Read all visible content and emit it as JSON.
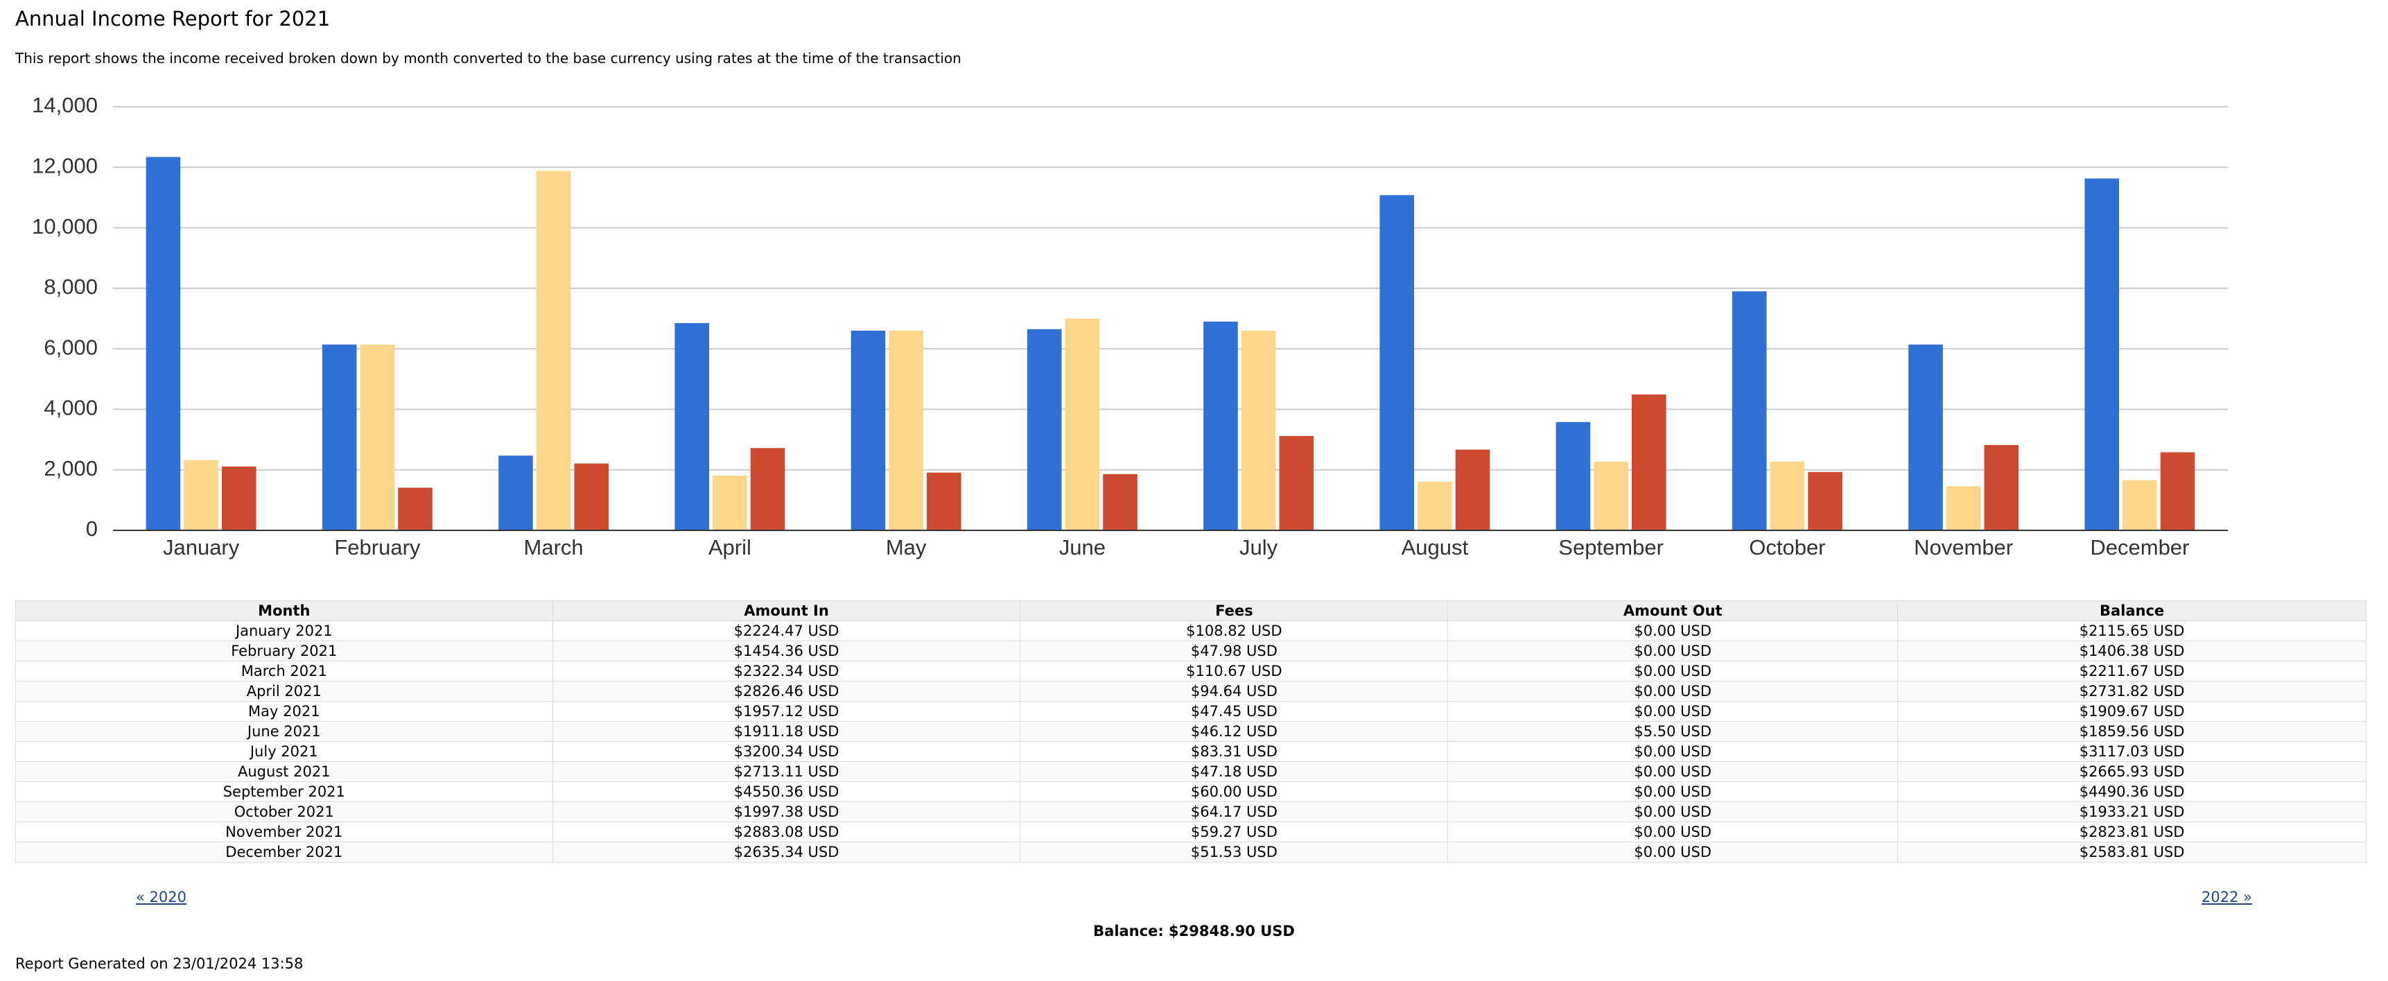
{
  "header": {
    "title": "Annual Income Report for 2021",
    "subtitle": "This report shows the income received broken down by month converted to the base currency using rates at the time of the transaction"
  },
  "chart_data": {
    "type": "bar",
    "categories": [
      "January",
      "February",
      "March",
      "April",
      "May",
      "June",
      "July",
      "August",
      "September",
      "October",
      "November",
      "December"
    ],
    "series": [
      {
        "color": "#3070d4",
        "values": [
          12340,
          6140,
          2470,
          6850,
          6600,
          6650,
          6900,
          11080,
          3580,
          7900,
          6140,
          11630
        ]
      },
      {
        "color": "#fad78c",
        "values": [
          2320,
          6140,
          11880,
          1810,
          6600,
          7000,
          6600,
          1610,
          2270,
          2270,
          1460,
          1660
        ]
      },
      {
        "color": "#cc4a30",
        "values": [
          2110,
          1410,
          2210,
          2720,
          1910,
          1860,
          3120,
          2670,
          4490,
          1930,
          2820,
          2580
        ]
      }
    ],
    "ylim": [
      0,
      14000
    ],
    "yticks": [
      0,
      {
        "value": 2000,
        "label": "2,000"
      },
      {
        "value": 4000,
        "label": "4,000"
      },
      {
        "value": 6000,
        "label": "6,000"
      },
      {
        "value": 8000,
        "label": "8,000"
      },
      {
        "value": 10000,
        "label": "10,000"
      },
      {
        "value": 12000,
        "label": "12,000"
      },
      {
        "value": 14000,
        "label": "14,000"
      }
    ],
    "grid": true
  },
  "table": {
    "columns": [
      "Month",
      "Amount In",
      "Fees",
      "Amount Out",
      "Balance"
    ],
    "rows": [
      [
        "January 2021",
        "$2224.47 USD",
        "$108.82 USD",
        "$0.00 USD",
        "$2115.65 USD"
      ],
      [
        "February 2021",
        "$1454.36 USD",
        "$47.98 USD",
        "$0.00 USD",
        "$1406.38 USD"
      ],
      [
        "March 2021",
        "$2322.34 USD",
        "$110.67 USD",
        "$0.00 USD",
        "$2211.67 USD"
      ],
      [
        "April 2021",
        "$2826.46 USD",
        "$94.64 USD",
        "$0.00 USD",
        "$2731.82 USD"
      ],
      [
        "May 2021",
        "$1957.12 USD",
        "$47.45 USD",
        "$0.00 USD",
        "$1909.67 USD"
      ],
      [
        "June 2021",
        "$1911.18 USD",
        "$46.12 USD",
        "$5.50 USD",
        "$1859.56 USD"
      ],
      [
        "July 2021",
        "$3200.34 USD",
        "$83.31 USD",
        "$0.00 USD",
        "$3117.03 USD"
      ],
      [
        "August 2021",
        "$2713.11 USD",
        "$47.18 USD",
        "$0.00 USD",
        "$2665.93 USD"
      ],
      [
        "September 2021",
        "$4550.36 USD",
        "$60.00 USD",
        "$0.00 USD",
        "$4490.36 USD"
      ],
      [
        "October 2021",
        "$1997.38 USD",
        "$64.17 USD",
        "$0.00 USD",
        "$1933.21 USD"
      ],
      [
        "November 2021",
        "$2883.08 USD",
        "$59.27 USD",
        "$0.00 USD",
        "$2823.81 USD"
      ],
      [
        "December 2021",
        "$2635.34 USD",
        "$51.53 USD",
        "$0.00 USD",
        "$2583.81 USD"
      ]
    ]
  },
  "nav": {
    "prev": "« 2020",
    "next": "2022 »"
  },
  "balance": "Balance: $29848.90 USD",
  "generated": "Report Generated on 23/01/2024 13:58"
}
